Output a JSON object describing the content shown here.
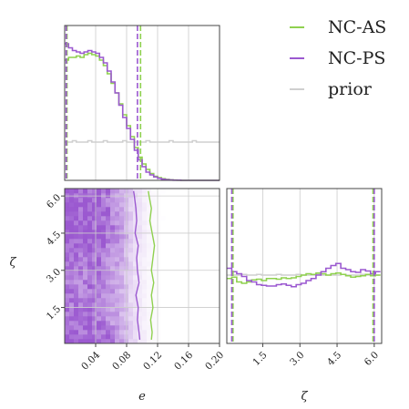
{
  "chart_data": {
    "type": "corner",
    "params": [
      "e",
      "ζ"
    ],
    "param_ranges": {
      "e": [
        0.0,
        0.2
      ],
      "zeta": [
        0.05,
        6.3
      ]
    },
    "xlabel_e": "e",
    "xlabel_zeta": "ζ",
    "ylabel_zeta": "ζ",
    "ticks_e": [
      "0.04",
      "0.08",
      "0.12",
      "0.16",
      "0.20"
    ],
    "ticks_e_values": [
      0.04,
      0.08,
      0.12,
      0.16,
      0.2
    ],
    "ticks_zeta": [
      "1.5",
      "3.0",
      "4.5",
      "6.0"
    ],
    "ticks_zeta_values": [
      1.5,
      3.0,
      4.5,
      6.0
    ],
    "grid": true,
    "legend_position": "top-right",
    "legend": [
      {
        "name": "NC-AS",
        "color": "#8fd14f"
      },
      {
        "name": "NC-PS",
        "color": "#9b59d0"
      },
      {
        "name": "prior",
        "color": "#cfcfcf"
      }
    ],
    "marginal_e": {
      "x_bin_centers": [
        0.0025,
        0.0075,
        0.0125,
        0.0175,
        0.0225,
        0.0275,
        0.0325,
        0.0375,
        0.0425,
        0.0475,
        0.0525,
        0.0575,
        0.0625,
        0.0675,
        0.0725,
        0.0775,
        0.0825,
        0.0875,
        0.0925,
        0.0975,
        0.1025,
        0.1075,
        0.1125,
        0.1175,
        0.1225,
        0.1275,
        0.1325,
        0.1375,
        0.1425,
        0.1475,
        0.1525,
        0.1575,
        0.1625,
        0.1675,
        0.1725,
        0.1775,
        0.1825,
        0.1875,
        0.1925,
        0.1975
      ],
      "series": [
        {
          "name": "NC-AS",
          "values": [
            0.88,
            0.9,
            0.9,
            0.91,
            0.9,
            0.92,
            0.93,
            0.92,
            0.91,
            0.88,
            0.84,
            0.78,
            0.71,
            0.64,
            0.56,
            0.48,
            0.4,
            0.32,
            0.24,
            0.17,
            0.12,
            0.08,
            0.05,
            0.03,
            0.02,
            0.012,
            0.007,
            0.004,
            0.002,
            0.001,
            0,
            0,
            0,
            0,
            0,
            0,
            0,
            0,
            0,
            0
          ]
        },
        {
          "name": "NC-PS",
          "values": [
            1.0,
            0.97,
            0.95,
            0.94,
            0.93,
            0.94,
            0.95,
            0.94,
            0.93,
            0.9,
            0.86,
            0.8,
            0.72,
            0.64,
            0.55,
            0.46,
            0.38,
            0.3,
            0.22,
            0.15,
            0.1,
            0.06,
            0.04,
            0.025,
            0.015,
            0.008,
            0.005,
            0.003,
            0.001,
            0.001,
            0,
            0,
            0,
            0,
            0,
            0,
            0,
            0,
            0,
            0
          ]
        },
        {
          "name": "prior",
          "values": [
            0.28,
            0.28,
            0.29,
            0.28,
            0.28,
            0.28,
            0.29,
            0.28,
            0.28,
            0.28,
            0.29,
            0.28,
            0.28,
            0.28,
            0.28,
            0.29,
            0.28,
            0.28,
            0.28,
            0.28,
            0.28,
            0.29,
            0.28,
            0.28,
            0.28,
            0.28,
            0.28,
            0.29,
            0.28,
            0.28,
            0.28,
            0.28,
            0.28,
            0.29,
            0.28,
            0.28,
            0.28,
            0.28,
            0.28,
            0.28
          ]
        }
      ],
      "quantile_lines": [
        {
          "series": "NC-AS",
          "values": [
            0.003,
            0.098
          ]
        },
        {
          "series": "NC-PS",
          "values": [
            0.002,
            0.094
          ]
        }
      ]
    },
    "marginal_zeta": {
      "x_bin_centers": [
        0.15,
        0.35,
        0.55,
        0.75,
        0.95,
        1.15,
        1.35,
        1.55,
        1.75,
        1.95,
        2.15,
        2.35,
        2.55,
        2.75,
        2.95,
        3.15,
        3.35,
        3.55,
        3.75,
        3.95,
        4.15,
        4.35,
        4.55,
        4.75,
        4.95,
        5.15,
        5.35,
        5.55,
        5.75,
        5.95,
        6.15
      ],
      "series": [
        {
          "name": "NC-AS",
          "values": [
            0.95,
            0.97,
            0.9,
            0.88,
            0.9,
            0.93,
            0.94,
            0.92,
            0.95,
            0.95,
            0.94,
            0.96,
            0.95,
            0.96,
            0.98,
            1.0,
            1.02,
            1.01,
            1.03,
            1.02,
            1.0,
            1.02,
            1.03,
            1.01,
            0.99,
            0.97,
            0.98,
            0.99,
            1.01,
            0.99,
            1.0
          ]
        },
        {
          "name": "NC-PS",
          "values": [
            1.1,
            1.05,
            1.02,
            0.98,
            0.92,
            0.9,
            0.86,
            0.85,
            0.84,
            0.84,
            0.86,
            0.87,
            0.85,
            0.83,
            0.86,
            0.88,
            0.92,
            0.95,
            1.0,
            1.05,
            1.1,
            1.14,
            1.17,
            1.1,
            1.08,
            1.05,
            1.04,
            1.08,
            1.06,
            1.02,
            1.05
          ]
        },
        {
          "name": "prior",
          "values": [
            1.0,
            1.0,
            1.0,
            1.01,
            1.0,
            1.0,
            1.01,
            1.0,
            1.0,
            1.0,
            1.01,
            1.0,
            1.0,
            1.0,
            1.01,
            1.0,
            1.0,
            1.0,
            1.01,
            1.0,
            1.0,
            1.0,
            1.0,
            1.01,
            1.0,
            1.0,
            1.0,
            1.01,
            1.0,
            1.0,
            1.0
          ]
        }
      ],
      "quantile_lines": [
        {
          "series": "NC-AS",
          "values": [
            0.3,
            5.95
          ]
        },
        {
          "series": "NC-PS",
          "values": [
            0.25,
            6.0
          ]
        }
      ]
    },
    "joint": {
      "x_param": "e",
      "y_param": "ζ",
      "density_cmap": [
        "#ffffff",
        "#9b59d0"
      ],
      "contours": [
        {
          "series": "NC-AS",
          "level": "outer",
          "y_values": [
            0.2,
            0.5,
            1.0,
            1.5,
            2.0,
            2.5,
            3.0,
            3.5,
            4.0,
            4.5,
            5.0,
            5.5,
            6.0,
            6.2
          ],
          "x_values": [
            0.112,
            0.113,
            0.111,
            0.114,
            0.112,
            0.115,
            0.112,
            0.114,
            0.116,
            0.113,
            0.11,
            0.112,
            0.109,
            0.108
          ]
        },
        {
          "series": "NC-PS",
          "level": "outer",
          "y_values": [
            0.2,
            0.5,
            1.0,
            1.5,
            2.0,
            2.5,
            3.0,
            3.5,
            4.0,
            4.5,
            5.0,
            5.5,
            6.0,
            6.2
          ],
          "x_values": [
            0.097,
            0.096,
            0.094,
            0.095,
            0.092,
            0.096,
            0.094,
            0.093,
            0.095,
            0.091,
            0.093,
            0.092,
            0.09,
            0.089
          ]
        }
      ]
    }
  }
}
